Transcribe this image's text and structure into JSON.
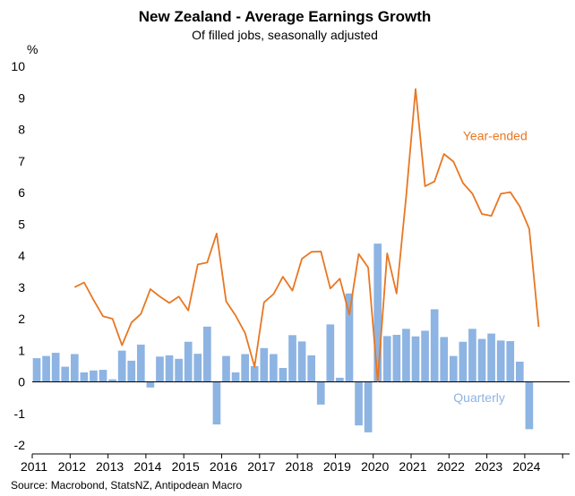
{
  "chart_data": {
    "type": "bar",
    "title": "New Zealand - Average Earnings Growth",
    "subtitle": "Of filled jobs, seasonally adjusted",
    "ylabel": "%",
    "ylim": [
      -2,
      10
    ],
    "yticks": [
      -2,
      -1,
      0,
      1,
      2,
      3,
      4,
      5,
      6,
      7,
      8,
      9,
      10
    ],
    "xlim": [
      2011.0,
      2024.75
    ],
    "x_tick_labels": [
      "2011",
      "2012",
      "2013",
      "2014",
      "2015",
      "2016",
      "2017",
      "2018",
      "2019",
      "2020",
      "2021",
      "2022",
      "2023",
      "2024"
    ],
    "source": "Source: Macrobond, StatsNZ, Antipodean Macro",
    "grid": false,
    "series": [
      {
        "name": "Quarterly",
        "type": "bar",
        "color": "#8DB4E2",
        "x": [
          2011.0,
          2011.25,
          2011.5,
          2011.75,
          2012.0,
          2012.25,
          2012.5,
          2012.75,
          2013.0,
          2013.25,
          2013.5,
          2013.75,
          2014.0,
          2014.25,
          2014.5,
          2014.75,
          2015.0,
          2015.25,
          2015.5,
          2015.75,
          2016.0,
          2016.25,
          2016.5,
          2016.75,
          2017.0,
          2017.25,
          2017.5,
          2017.75,
          2018.0,
          2018.25,
          2018.5,
          2018.75,
          2019.0,
          2019.25,
          2019.5,
          2019.75,
          2020.0,
          2020.25,
          2020.5,
          2020.75,
          2021.0,
          2021.25,
          2021.5,
          2021.75,
          2022.0,
          2022.25,
          2022.5,
          2022.75,
          2023.0,
          2023.25,
          2023.5,
          2023.75,
          2024.0,
          2024.25
        ],
        "values": [
          0.75,
          0.82,
          0.92,
          0.48,
          0.88,
          0.3,
          0.36,
          0.38,
          0.08,
          0.99,
          0.67,
          1.18,
          -0.18,
          0.8,
          0.84,
          0.73,
          1.27,
          0.89,
          1.75,
          -1.35,
          0.82,
          0.3,
          0.88,
          0.5,
          1.07,
          0.88,
          0.44,
          1.48,
          1.28,
          0.84,
          -0.72,
          1.82,
          0.13,
          2.8,
          -1.38,
          -1.6,
          4.38,
          1.45,
          1.49,
          1.68,
          1.44,
          1.62,
          2.3,
          1.42,
          0.82,
          1.27,
          1.68,
          1.36,
          1.53,
          1.31,
          1.29,
          0.64,
          -1.5,
          null
        ]
      },
      {
        "name": "Year-ended",
        "type": "line",
        "color": "#E87722",
        "x": [
          2012.0,
          2012.25,
          2012.5,
          2012.75,
          2013.0,
          2013.25,
          2013.5,
          2013.75,
          2014.0,
          2014.25,
          2014.5,
          2014.75,
          2015.0,
          2015.25,
          2015.5,
          2015.75,
          2016.0,
          2016.25,
          2016.5,
          2016.75,
          2017.0,
          2017.25,
          2017.5,
          2017.75,
          2018.0,
          2018.25,
          2018.5,
          2018.75,
          2019.0,
          2019.25,
          2019.5,
          2019.75,
          2020.0,
          2020.25,
          2020.5,
          2020.75,
          2021.0,
          2021.25,
          2021.5,
          2021.75,
          2022.0,
          2022.25,
          2022.5,
          2022.75,
          2023.0,
          2023.25,
          2023.5,
          2023.75,
          2024.0,
          2024.25
        ],
        "values": [
          3.0,
          3.15,
          2.6,
          2.08,
          2.0,
          1.16,
          1.88,
          2.15,
          2.94,
          2.7,
          2.5,
          2.7,
          2.26,
          3.72,
          3.78,
          4.7,
          2.55,
          2.1,
          1.55,
          0.48,
          2.52,
          2.78,
          3.33,
          2.89,
          3.9,
          4.12,
          4.13,
          2.96,
          3.27,
          2.13,
          4.05,
          3.62,
          0.02,
          4.07,
          2.8,
          5.85,
          9.28,
          6.2,
          6.35,
          7.22,
          6.98,
          6.3,
          5.96,
          5.32,
          5.26,
          5.96,
          6.01,
          5.56,
          4.85,
          1.74
        ]
      }
    ],
    "annotations": [
      {
        "text": "Year-ended",
        "color": "#E87722",
        "x": 2022.25,
        "y": 7.8
      },
      {
        "text": "Quarterly",
        "color": "#8DB4E2",
        "x": 2022.0,
        "y": -0.5
      }
    ]
  }
}
